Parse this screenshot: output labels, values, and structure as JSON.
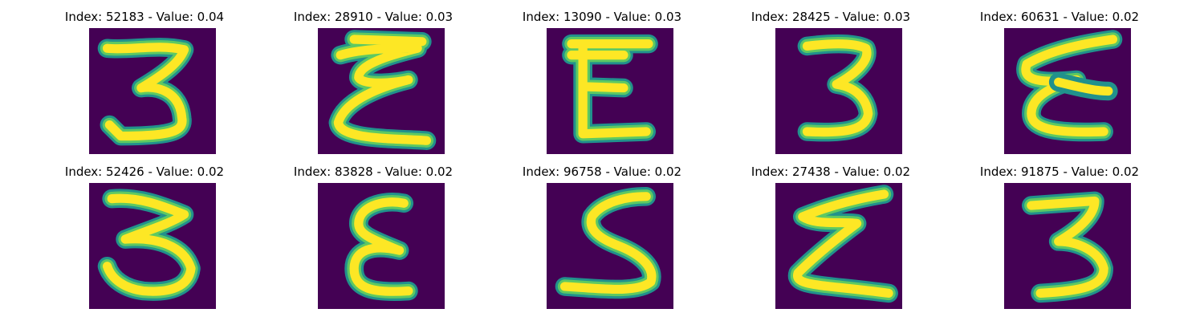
{
  "panels": [
    {
      "title": "Index: 52183 - Value: 0.04",
      "glyph": "g1"
    },
    {
      "title": "Index: 28910 - Value: 0.03",
      "glyph": "g2"
    },
    {
      "title": "Index: 13090 - Value: 0.03",
      "glyph": "g3"
    },
    {
      "title": "Index: 28425 - Value: 0.03",
      "glyph": "g4"
    },
    {
      "title": "Index: 60631 - Value: 0.02",
      "glyph": "g5"
    },
    {
      "title": "Index: 52426 - Value: 0.02",
      "glyph": "g6"
    },
    {
      "title": "Index: 83828 - Value: 0.02",
      "glyph": "g7"
    },
    {
      "title": "Index: 96758 - Value: 0.02",
      "glyph": "g8"
    },
    {
      "title": "Index: 27438 - Value: 0.02",
      "glyph": "g9"
    },
    {
      "title": "Index: 91875 - Value: 0.02",
      "glyph": "g10"
    }
  ],
  "colors": {
    "background": "#440154",
    "edge": "#21918c",
    "mid": "#5ec962",
    "core": "#fde725"
  }
}
